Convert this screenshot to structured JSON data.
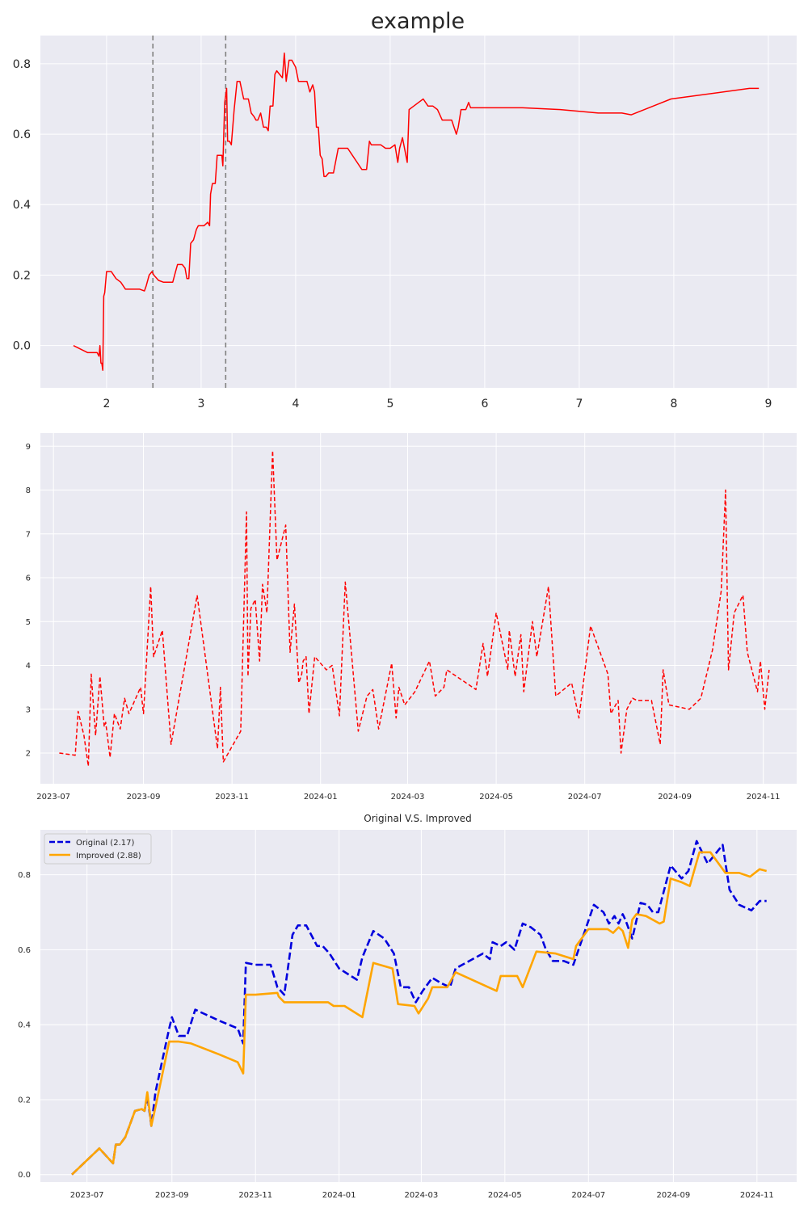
{
  "chart_data": [
    {
      "type": "line",
      "title": "example",
      "xlim": [
        1.3,
        9.3
      ],
      "ylim": [
        -0.12,
        0.88
      ],
      "xticks": [
        "2",
        "3",
        "4",
        "5",
        "6",
        "7",
        "8",
        "9"
      ],
      "yticks": [
        "0.0",
        "0.2",
        "0.4",
        "0.6",
        "0.8"
      ],
      "vlines": [
        2.49,
        3.26
      ],
      "vline_color": "#808080",
      "series": [
        {
          "color": "#ff0000",
          "style": "solid",
          "x": [
            1.65,
            1.8,
            1.9,
            1.92,
            1.93,
            1.94,
            1.95,
            1.96,
            1.97,
            1.98,
            2.0,
            2.02,
            2.05,
            2.1,
            2.15,
            2.2,
            2.25,
            2.3,
            2.35,
            2.4,
            2.42,
            2.45,
            2.48,
            2.5,
            2.55,
            2.6,
            2.7,
            2.73,
            2.75,
            2.8,
            2.83,
            2.85,
            2.87,
            2.89,
            2.92,
            2.95,
            2.97,
            3.0,
            3.03,
            3.07,
            3.09,
            3.1,
            3.12,
            3.15,
            3.17,
            3.22,
            3.23,
            3.25,
            3.27,
            3.28,
            3.3,
            3.32,
            3.35,
            3.38,
            3.41,
            3.45,
            3.5,
            3.53,
            3.56,
            3.58,
            3.6,
            3.63,
            3.66,
            3.69,
            3.71,
            3.73,
            3.76,
            3.78,
            3.8,
            3.83,
            3.86,
            3.88,
            3.9,
            3.93,
            3.96,
            4.0,
            4.03,
            4.06,
            4.09,
            4.12,
            4.15,
            4.18,
            4.2,
            4.22,
            4.24,
            4.26,
            4.28,
            4.3,
            4.32,
            4.35,
            4.4,
            4.45,
            4.5,
            4.55,
            4.6,
            4.65,
            4.7,
            4.75,
            4.78,
            4.8,
            4.85,
            4.9,
            4.95,
            5.0,
            5.05,
            5.08,
            5.1,
            5.13,
            5.18,
            5.2,
            5.25,
            5.3,
            5.35,
            5.4,
            5.45,
            5.5,
            5.55,
            5.6,
            5.65,
            5.7,
            5.72,
            5.75,
            5.8,
            5.83,
            5.85,
            6.0,
            6.2,
            6.4,
            6.8,
            7.2,
            7.45,
            7.55,
            7.97,
            8.8,
            8.9
          ],
          "y": [
            0.0,
            -0.02,
            -0.02,
            -0.03,
            0.0,
            -0.05,
            -0.05,
            -0.07,
            0.14,
            0.15,
            0.21,
            0.21,
            0.21,
            0.19,
            0.18,
            0.16,
            0.16,
            0.16,
            0.16,
            0.155,
            0.17,
            0.2,
            0.21,
            0.2,
            0.185,
            0.18,
            0.18,
            0.21,
            0.23,
            0.23,
            0.22,
            0.19,
            0.19,
            0.29,
            0.3,
            0.33,
            0.34,
            0.34,
            0.34,
            0.35,
            0.34,
            0.43,
            0.46,
            0.46,
            0.54,
            0.54,
            0.51,
            0.69,
            0.73,
            0.58,
            0.58,
            0.57,
            0.67,
            0.75,
            0.75,
            0.7,
            0.7,
            0.66,
            0.65,
            0.64,
            0.64,
            0.66,
            0.62,
            0.62,
            0.61,
            0.68,
            0.68,
            0.77,
            0.78,
            0.77,
            0.76,
            0.83,
            0.75,
            0.81,
            0.81,
            0.79,
            0.75,
            0.75,
            0.75,
            0.75,
            0.72,
            0.74,
            0.72,
            0.62,
            0.62,
            0.54,
            0.53,
            0.48,
            0.48,
            0.49,
            0.49,
            0.56,
            0.56,
            0.56,
            0.54,
            0.52,
            0.5,
            0.5,
            0.58,
            0.57,
            0.57,
            0.57,
            0.56,
            0.56,
            0.57,
            0.52,
            0.56,
            0.59,
            0.52,
            0.67,
            0.68,
            0.69,
            0.7,
            0.68,
            0.68,
            0.67,
            0.64,
            0.64,
            0.64,
            0.6,
            0.62,
            0.67,
            0.67,
            0.69,
            0.675,
            0.675,
            0.675,
            0.675,
            0.67,
            0.66,
            0.66,
            0.655,
            0.7,
            0.73,
            0.73
          ]
        }
      ]
    },
    {
      "type": "line",
      "title": "",
      "x_is_date": true,
      "xlim": [
        "2023-06-22",
        "2024-11-24"
      ],
      "ylim": [
        1.3,
        9.3
      ],
      "xticks": [
        "2023-07",
        "2023-09",
        "2023-11",
        "2024-01",
        "2024-03",
        "2024-05",
        "2024-07",
        "2024-09",
        "2024-11"
      ],
      "yticks": [
        "2",
        "3",
        "4",
        "5",
        "6",
        "7",
        "8",
        "9"
      ],
      "series": [
        {
          "color": "#ff0000",
          "style": "dashed",
          "x": [
            "2023-07-05",
            "2023-07-16",
            "2023-07-18",
            "2023-07-22",
            "2023-07-25",
            "2023-07-27",
            "2023-07-30",
            "2023-08-02",
            "2023-08-05",
            "2023-08-06",
            "2023-08-09",
            "2023-08-12",
            "2023-08-16",
            "2023-08-19",
            "2023-08-22",
            "2023-08-30",
            "2023-09-01",
            "2023-09-06",
            "2023-09-08",
            "2023-09-14",
            "2023-09-20",
            "2023-10-08",
            "2023-10-22",
            "2023-10-24",
            "2023-10-26",
            "2023-11-07",
            "2023-11-11",
            "2023-11-12",
            "2023-11-14",
            "2023-11-17",
            "2023-11-20",
            "2023-11-22",
            "2023-11-25",
            "2023-11-29",
            "2023-12-02",
            "2023-12-08",
            "2023-12-11",
            "2023-12-14",
            "2023-12-17",
            "2023-12-19",
            "2023-12-20",
            "2023-12-22",
            "2023-12-24",
            "2023-12-28",
            "2024-01-05",
            "2024-01-09",
            "2024-01-14",
            "2024-01-18",
            "2024-01-27",
            "2024-02-02",
            "2024-02-06",
            "2024-02-10",
            "2024-02-19",
            "2024-02-22",
            "2024-02-24",
            "2024-02-28",
            "2024-03-06",
            "2024-03-16",
            "2024-03-20",
            "2024-03-26",
            "2024-03-28",
            "2024-04-17",
            "2024-04-22",
            "2024-04-25",
            "2024-05-01",
            "2024-05-09",
            "2024-05-10",
            "2024-05-14",
            "2024-05-18",
            "2024-05-20",
            "2024-05-26",
            "2024-05-29",
            "2024-06-06",
            "2024-06-11",
            "2024-06-22",
            "2024-06-27",
            "2024-07-05",
            "2024-07-17",
            "2024-07-19",
            "2024-07-24",
            "2024-07-26",
            "2024-07-30",
            "2024-08-03",
            "2024-08-06",
            "2024-08-16",
            "2024-08-22",
            "2024-08-24",
            "2024-08-28",
            "2024-09-11",
            "2024-09-19",
            "2024-09-27",
            "2024-10-03",
            "2024-10-06",
            "2024-10-08",
            "2024-10-12",
            "2024-10-18",
            "2024-10-21",
            "2024-10-28",
            "2024-10-30",
            "2024-11-02",
            "2024-11-05"
          ],
          "y": [
            2.0,
            1.95,
            2.95,
            2.4,
            1.7,
            3.8,
            2.4,
            3.75,
            2.6,
            2.7,
            1.9,
            2.9,
            2.55,
            3.25,
            2.9,
            3.5,
            2.9,
            5.8,
            4.2,
            4.8,
            2.2,
            5.6,
            2.1,
            3.5,
            1.8,
            2.5,
            7.5,
            3.75,
            5.3,
            5.5,
            4.1,
            5.85,
            5.2,
            8.9,
            6.4,
            7.2,
            4.3,
            5.4,
            3.6,
            3.8,
            4.1,
            4.2,
            2.9,
            4.2,
            3.9,
            4.0,
            2.85,
            5.9,
            2.5,
            3.3,
            3.45,
            2.55,
            4.05,
            2.8,
            3.5,
            3.1,
            3.4,
            4.1,
            3.3,
            3.5,
            3.9,
            3.45,
            4.5,
            3.75,
            5.2,
            3.9,
            4.8,
            3.75,
            4.7,
            3.4,
            5.0,
            4.2,
            5.8,
            3.3,
            3.6,
            2.8,
            4.9,
            3.8,
            2.9,
            3.2,
            2.0,
            3.0,
            3.25,
            3.2,
            3.2,
            2.2,
            3.9,
            3.1,
            3.0,
            3.25,
            4.35,
            5.7,
            8.0,
            3.9,
            5.2,
            5.6,
            4.3,
            3.4,
            4.1,
            3.0,
            3.9
          ]
        }
      ]
    },
    {
      "type": "line",
      "title": "Original V.S. Improved",
      "x_is_date": true,
      "xlim": [
        "2023-05-28",
        "2024-11-30"
      ],
      "ylim": [
        -0.02,
        0.92
      ],
      "xticks": [
        "2023-07",
        "2023-09",
        "2023-11",
        "2024-01",
        "2024-03",
        "2024-05",
        "2024-07",
        "2024-09",
        "2024-11"
      ],
      "yticks": [
        "0.0",
        "0.2",
        "0.4",
        "0.6",
        "0.8"
      ],
      "legend": {
        "placement": "top-left",
        "entries": [
          "Original (2.17)",
          "Improved (2.88)"
        ]
      },
      "series": [
        {
          "name": "Original (2.17)",
          "color": "#0000dd",
          "style": "dashed",
          "x": [
            "2023-06-20",
            "2023-07-10",
            "2023-07-20",
            "2023-07-22",
            "2023-07-25",
            "2023-07-29",
            "2023-08-05",
            "2023-08-10",
            "2023-08-12",
            "2023-08-14",
            "2023-08-17",
            "2023-08-20",
            "2023-08-30",
            "2023-09-01",
            "2023-09-06",
            "2023-09-12",
            "2023-09-18",
            "2023-10-06",
            "2023-10-19",
            "2023-10-23",
            "2023-10-25",
            "2023-11-01",
            "2023-11-12",
            "2023-11-17",
            "2023-11-22",
            "2023-11-28",
            "2023-12-02",
            "2023-12-08",
            "2023-12-16",
            "2023-12-20",
            "2023-12-25",
            "2024-01-01",
            "2024-01-14",
            "2024-01-18",
            "2024-01-26",
            "2024-02-03",
            "2024-02-10",
            "2024-02-15",
            "2024-02-21",
            "2024-02-26",
            "2024-03-02",
            "2024-03-09",
            "2024-03-16",
            "2024-03-22",
            "2024-03-26",
            "2024-04-15",
            "2024-04-20",
            "2024-04-22",
            "2024-04-28",
            "2024-05-02",
            "2024-05-08",
            "2024-05-14",
            "2024-05-20",
            "2024-05-27",
            "2024-05-31",
            "2024-06-05",
            "2024-06-13",
            "2024-06-20",
            "2024-07-05",
            "2024-07-12",
            "2024-07-16",
            "2024-07-20",
            "2024-07-23",
            "2024-07-26",
            "2024-07-28",
            "2024-08-02",
            "2024-08-08",
            "2024-08-13",
            "2024-08-17",
            "2024-08-21",
            "2024-08-30",
            "2024-09-07",
            "2024-09-12",
            "2024-09-18",
            "2024-09-26",
            "2024-10-07",
            "2024-10-12",
            "2024-10-19",
            "2024-10-28",
            "2024-11-03",
            "2024-11-08"
          ],
          "y": [
            0.0,
            0.07,
            0.03,
            0.08,
            0.08,
            0.1,
            0.17,
            0.175,
            0.17,
            0.21,
            0.13,
            0.22,
            0.39,
            0.42,
            0.37,
            0.37,
            0.44,
            0.41,
            0.39,
            0.35,
            0.565,
            0.56,
            0.56,
            0.5,
            0.48,
            0.64,
            0.665,
            0.665,
            0.61,
            0.61,
            0.59,
            0.55,
            0.52,
            0.58,
            0.65,
            0.63,
            0.59,
            0.5,
            0.5,
            0.46,
            0.49,
            0.525,
            0.51,
            0.5,
            0.55,
            0.59,
            0.575,
            0.62,
            0.61,
            0.62,
            0.6,
            0.67,
            0.66,
            0.64,
            0.6,
            0.57,
            0.57,
            0.56,
            0.72,
            0.7,
            0.67,
            0.69,
            0.67,
            0.695,
            0.68,
            0.63,
            0.725,
            0.72,
            0.7,
            0.7,
            0.825,
            0.79,
            0.81,
            0.89,
            0.83,
            0.88,
            0.76,
            0.72,
            0.705,
            0.73,
            0.73
          ]
        },
        {
          "name": "Improved (2.88)",
          "color": "#ffa500",
          "style": "solid",
          "x": [
            "2023-06-20",
            "2023-07-10",
            "2023-07-20",
            "2023-07-22",
            "2023-07-25",
            "2023-07-29",
            "2023-08-05",
            "2023-08-10",
            "2023-08-12",
            "2023-08-14",
            "2023-08-17",
            "2023-08-20",
            "2023-08-30",
            "2023-09-01",
            "2023-09-06",
            "2023-09-15",
            "2023-10-06",
            "2023-10-19",
            "2023-10-23",
            "2023-10-25",
            "2023-11-01",
            "2023-11-17",
            "2023-11-18",
            "2023-11-22",
            "2023-12-10",
            "2023-12-24",
            "2023-12-28",
            "2024-01-05",
            "2024-01-18",
            "2024-01-26",
            "2024-02-09",
            "2024-02-13",
            "2024-02-25",
            "2024-02-28",
            "2024-03-06",
            "2024-03-09",
            "2024-03-20",
            "2024-03-26",
            "2024-04-25",
            "2024-04-28",
            "2024-05-10",
            "2024-05-14",
            "2024-05-24",
            "2024-06-07",
            "2024-06-20",
            "2024-06-22",
            "2024-07-01",
            "2024-07-15",
            "2024-07-19",
            "2024-07-23",
            "2024-07-26",
            "2024-07-30",
            "2024-08-02",
            "2024-08-05",
            "2024-08-12",
            "2024-08-22",
            "2024-08-25",
            "2024-08-30",
            "2024-09-07",
            "2024-09-13",
            "2024-09-20",
            "2024-09-28",
            "2024-10-09",
            "2024-10-19",
            "2024-10-27",
            "2024-11-03",
            "2024-11-08"
          ],
          "y": [
            0.0,
            0.07,
            0.03,
            0.08,
            0.08,
            0.1,
            0.17,
            0.175,
            0.17,
            0.22,
            0.13,
            0.18,
            0.355,
            0.355,
            0.355,
            0.35,
            0.32,
            0.3,
            0.27,
            0.48,
            0.48,
            0.485,
            0.475,
            0.46,
            0.46,
            0.46,
            0.45,
            0.45,
            0.42,
            0.565,
            0.55,
            0.455,
            0.45,
            0.43,
            0.47,
            0.5,
            0.5,
            0.54,
            0.49,
            0.53,
            0.53,
            0.5,
            0.595,
            0.59,
            0.575,
            0.61,
            0.655,
            0.655,
            0.645,
            0.66,
            0.65,
            0.605,
            0.68,
            0.695,
            0.69,
            0.67,
            0.675,
            0.79,
            0.78,
            0.77,
            0.86,
            0.86,
            0.805,
            0.805,
            0.795,
            0.815,
            0.81
          ]
        }
      ]
    }
  ]
}
